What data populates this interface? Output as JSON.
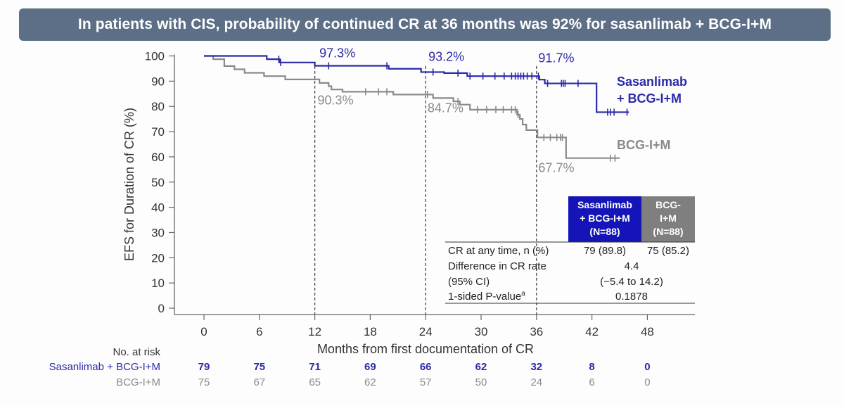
{
  "banner": {
    "title": "In patients with CIS, probability of continued CR at 36 months was 92% for sasanlimab + BCG-I+M"
  },
  "chart_data": {
    "type": "line",
    "subtype": "kaplan-meier",
    "xlabel": "Months from first documentation of CR",
    "ylabel": "EFS for Duration of CR (%)",
    "xlim": [
      0,
      48
    ],
    "ylim": [
      0,
      100
    ],
    "x_ticks": [
      0,
      6,
      12,
      18,
      24,
      30,
      36,
      42,
      48
    ],
    "y_ticks": [
      0,
      10,
      20,
      30,
      40,
      50,
      60,
      70,
      80,
      90,
      100
    ],
    "reference_lines_x": [
      12,
      24,
      36
    ],
    "colors": {
      "sasanlimab": "#2b2aa8",
      "bcg": "#8a8a8a",
      "table_header_s": "#1414b8",
      "table_header_b": "#7f7f7f"
    },
    "series": [
      {
        "name": "Sasanlimab + BCG-I+M",
        "legend": [
          "Sasanlimab",
          "+ BCG-I+M"
        ],
        "steps": [
          [
            0,
            100
          ],
          [
            6.8,
            98.7
          ],
          [
            8.2,
            97.4
          ],
          [
            12,
            96.1
          ],
          [
            20,
            94.9
          ],
          [
            23.5,
            93.6
          ],
          [
            26,
            93.2
          ],
          [
            28.5,
            92.0
          ],
          [
            36.3,
            90.6
          ],
          [
            36.9,
            89.1
          ],
          [
            42.5,
            77.7
          ],
          [
            46,
            77.7
          ]
        ],
        "censor": [
          8.1,
          8.3,
          13.5,
          19.8,
          24.8,
          27.5,
          28.8,
          30.2,
          31.5,
          32.5,
          33.3,
          33.7,
          34.0,
          34.3,
          34.6,
          35.0,
          35.5,
          36.2,
          37.2,
          38.7,
          38.9,
          39.1,
          40.5,
          43.7,
          44.0,
          44.4,
          45.8
        ]
      },
      {
        "name": "BCG-I+M",
        "legend": [
          "BCG-I+M"
        ],
        "steps": [
          [
            0,
            100
          ],
          [
            1,
            98.7
          ],
          [
            2.2,
            96.0
          ],
          [
            3.3,
            94.7
          ],
          [
            4.4,
            93.3
          ],
          [
            6.5,
            92.0
          ],
          [
            8.8,
            90.7
          ],
          [
            12.5,
            89.3
          ],
          [
            13.5,
            88.0
          ],
          [
            13.8,
            86.7
          ],
          [
            15,
            85.8
          ],
          [
            20.5,
            84.7
          ],
          [
            24.8,
            83.3
          ],
          [
            27,
            82.0
          ],
          [
            27.7,
            80.7
          ],
          [
            28.8,
            78.7
          ],
          [
            33.9,
            76.7
          ],
          [
            34.2,
            75.0
          ],
          [
            34.5,
            72.8
          ],
          [
            34.9,
            70.6
          ],
          [
            36.1,
            67.7
          ],
          [
            39.2,
            59.5
          ],
          [
            45,
            59.5
          ]
        ],
        "censor": [
          17.5,
          18.9,
          19.8,
          24.2,
          27.5,
          29.6,
          30.6,
          31.6,
          32.4,
          33.3,
          33.7,
          34.0,
          36.8,
          37.5,
          38.2,
          38.6,
          38.8,
          44.0,
          44.5
        ]
      }
    ],
    "annotations": [
      {
        "text": "97.3%",
        "x": 12.5,
        "y": 99.5,
        "series": 0
      },
      {
        "text": "93.2%",
        "x": 24.3,
        "y": 98.0,
        "series": 0
      },
      {
        "text": "91.7%",
        "x": 36.2,
        "y": 97.5,
        "series": 0
      },
      {
        "text": "90.3%",
        "x": 12.3,
        "y": 80.7,
        "series": 1
      },
      {
        "text": "84.7%",
        "x": 24.2,
        "y": 77.7,
        "series": 1
      },
      {
        "text": "67.7%",
        "x": 36.2,
        "y": 54.0,
        "series": 1
      }
    ],
    "table": {
      "headers": [
        [
          "Sasanlimab",
          "+ BCG-I+M",
          "(N=88)"
        ],
        [
          "BCG-",
          "I+M",
          "(N=88)"
        ]
      ],
      "rows": [
        {
          "label": "CR at any time, n (%)",
          "values": [
            "79 (89.8)",
            "75 (85.2)"
          ]
        },
        {
          "label": "Difference in CR rate",
          "merged": "4.4"
        },
        {
          "label": "(95% CI)",
          "merged": "(−5.4 to 14.2)"
        },
        {
          "label": "1-sided P-value",
          "sup": "a",
          "merged": "0.1878"
        }
      ]
    },
    "at_risk": {
      "title": "No. at risk",
      "rows": [
        {
          "label": "Sasanlimab + BCG-I+M",
          "values": [
            "79",
            "75",
            "71",
            "69",
            "66",
            "62",
            "32",
            "8",
            "0"
          ]
        },
        {
          "label": "BCG-I+M",
          "values": [
            "75",
            "67",
            "65",
            "62",
            "57",
            "50",
            "24",
            "6",
            "0"
          ]
        }
      ]
    }
  }
}
